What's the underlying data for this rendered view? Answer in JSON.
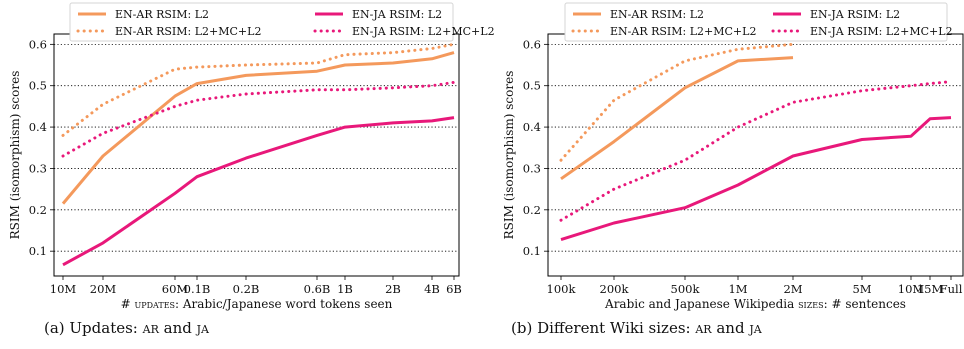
{
  "chart_data": [
    {
      "type": "line",
      "x_scale": "log",
      "x_tick_labels": [
        "10M",
        "20M",
        "60M",
        "0.1B",
        "0.2B",
        "0.6B",
        "1B",
        "2B",
        "4B",
        "6B"
      ],
      "xlabel_prefix": "# ",
      "xlabel_smallcaps": "updates",
      "xlabel_suffix": ": Arabic/Japanese word tokens seen",
      "ylabel": "RSIM (isomorphism) scores",
      "y_tick_labels": [
        "0.1",
        "0.2",
        "0.3",
        "0.4",
        "0.5",
        "0.6"
      ],
      "ylim": [
        0.04,
        0.625
      ],
      "grid": "horizontal-dotted",
      "legend": "top, 2 columns",
      "caption_prefix": "(a) Updates: ",
      "caption_sc1": "ar",
      "caption_mid": " and ",
      "caption_sc2": "ja",
      "series": [
        {
          "name": "EN-AR RSIM: L2",
          "color": "#f4995c",
          "style": "solid",
          "x": [
            "10M",
            "20M",
            "60M",
            "0.1B",
            "0.2B",
            "0.6B",
            "1B",
            "2B",
            "4B",
            "6B"
          ],
          "values": [
            0.215,
            0.33,
            0.475,
            0.505,
            0.525,
            0.535,
            0.55,
            0.555,
            0.565,
            0.58
          ]
        },
        {
          "name": "EN-AR RSIM: L2+MC+L2",
          "color": "#f4995c",
          "style": "dotted",
          "x": [
            "10M",
            "20M",
            "60M",
            "0.1B",
            "0.2B",
            "0.6B",
            "1B",
            "2B",
            "4B",
            "6B"
          ],
          "values": [
            0.38,
            0.455,
            0.54,
            0.545,
            0.55,
            0.555,
            0.575,
            0.58,
            0.59,
            0.6
          ]
        },
        {
          "name": "EN-JA RSIM: L2",
          "color": "#e8187a",
          "style": "solid",
          "x": [
            "10M",
            "20M",
            "60M",
            "0.1B",
            "0.2B",
            "0.6B",
            "1B",
            "2B",
            "4B",
            "6B"
          ],
          "values": [
            0.067,
            0.12,
            0.24,
            0.28,
            0.325,
            0.38,
            0.4,
            0.41,
            0.415,
            0.423
          ]
        },
        {
          "name": "EN-JA RSIM: L2+MC+L2",
          "color": "#e8187a",
          "style": "dotted",
          "x": [
            "10M",
            "20M",
            "60M",
            "0.1B",
            "0.2B",
            "0.6B",
            "1B",
            "2B",
            "4B",
            "6B"
          ],
          "values": [
            0.33,
            0.385,
            0.45,
            0.465,
            0.48,
            0.49,
            0.49,
            0.495,
            0.5,
            0.508
          ]
        }
      ]
    },
    {
      "type": "line",
      "x_scale": "log",
      "x_tick_labels": [
        "100k",
        "200k",
        "500k",
        "1M",
        "2M",
        "5M",
        "10M",
        "15M",
        "Full"
      ],
      "xlabel_prefix": "Arabic and Japanese Wikipedia ",
      "xlabel_smallcaps": "sizes",
      "xlabel_suffix": ": # sentences",
      "ylabel": "RSIM (isomorphism) scores",
      "y_tick_labels": [
        "0.1",
        "0.2",
        "0.3",
        "0.4",
        "0.5",
        "0.6"
      ],
      "ylim": [
        0.04,
        0.625
      ],
      "grid": "horizontal-dotted",
      "legend": "top, 2 columns",
      "caption_prefix": "(b) Different Wiki sizes: ",
      "caption_sc1": "ar",
      "caption_mid": " and ",
      "caption_sc2": "ja",
      "series": [
        {
          "name": "EN-AR RSIM: L2",
          "color": "#f4995c",
          "style": "solid",
          "x": [
            "100k",
            "200k",
            "500k",
            "1M",
            "2M"
          ],
          "values": [
            0.275,
            0.365,
            0.495,
            0.56,
            0.568
          ]
        },
        {
          "name": "EN-AR RSIM: L2+MC+L2",
          "color": "#f4995c",
          "style": "dotted",
          "x": [
            "100k",
            "200k",
            "500k",
            "1M",
            "2M"
          ],
          "values": [
            0.32,
            0.465,
            0.56,
            0.588,
            0.6
          ]
        },
        {
          "name": "EN-JA RSIM: L2",
          "color": "#e8187a",
          "style": "solid",
          "x": [
            "100k",
            "200k",
            "500k",
            "1M",
            "2M",
            "5M",
            "10M",
            "15M",
            "Full"
          ],
          "values": [
            0.128,
            0.168,
            0.205,
            0.26,
            0.33,
            0.37,
            0.378,
            0.42,
            0.423
          ]
        },
        {
          "name": "EN-JA RSIM: L2+MC+L2",
          "color": "#e8187a",
          "style": "dotted",
          "x": [
            "100k",
            "200k",
            "500k",
            "1M",
            "2M",
            "5M",
            "10M",
            "15M",
            "Full"
          ],
          "values": [
            0.175,
            0.25,
            0.32,
            0.4,
            0.46,
            0.488,
            0.5,
            0.505,
            0.51
          ]
        }
      ]
    }
  ]
}
